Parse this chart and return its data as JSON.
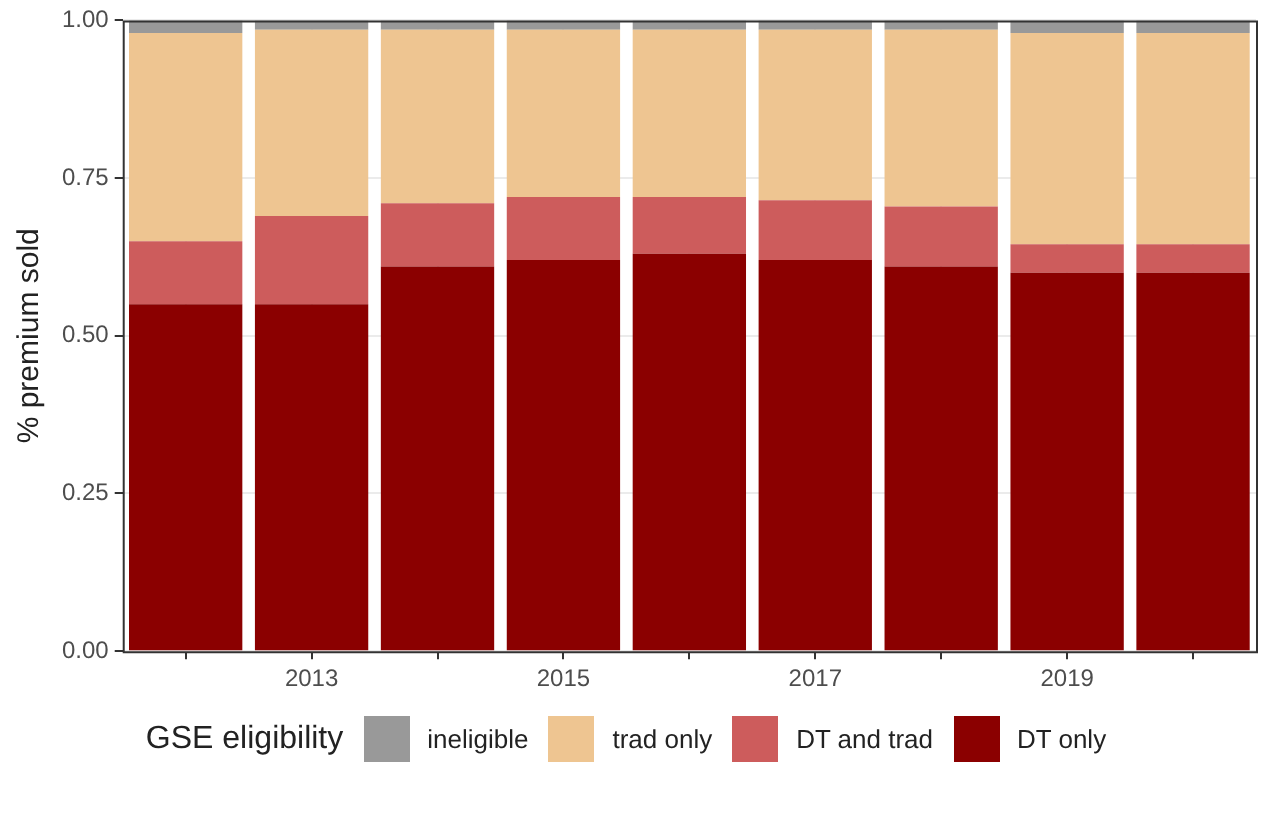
{
  "chart_data": {
    "type": "bar",
    "stacked": true,
    "ylabel": "% premium sold",
    "legend_title": "GSE eligibility",
    "legend": "bottom",
    "grid": true,
    "categories": [
      null,
      "2013",
      null,
      "2015",
      null,
      "2017",
      null,
      "2019",
      null
    ],
    "ylim": [
      0,
      1
    ],
    "yticks": [
      {
        "value": 0,
        "label": "0.00"
      },
      {
        "value": 0.25,
        "label": "0.25"
      },
      {
        "value": 0.5,
        "label": "0.50"
      },
      {
        "value": 0.75,
        "label": "0.75"
      },
      {
        "value": 1,
        "label": "1.00"
      }
    ],
    "series": [
      {
        "name": "DT only",
        "color": "#8b0000",
        "values": [
          0.55,
          0.55,
          0.61,
          0.62,
          0.63,
          0.62,
          0.61,
          0.6,
          0.6
        ]
      },
      {
        "name": "DT and trad",
        "color": "#cd5c5c",
        "values": [
          0.1,
          0.14,
          0.1,
          0.1,
          0.09,
          0.095,
          0.095,
          0.045,
          0.045
        ]
      },
      {
        "name": "trad only",
        "color": "#eec591",
        "values": [
          0.33,
          0.295,
          0.275,
          0.265,
          0.265,
          0.27,
          0.28,
          0.335,
          0.335
        ]
      },
      {
        "name": "ineligible",
        "color": "#999999",
        "values": [
          0.02,
          0.015,
          0.015,
          0.015,
          0.015,
          0.015,
          0.015,
          0.02,
          0.02
        ]
      }
    ]
  }
}
